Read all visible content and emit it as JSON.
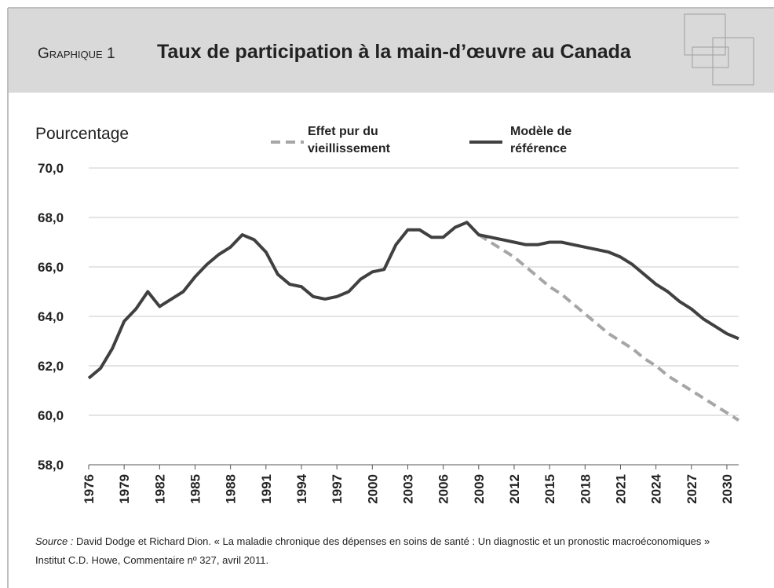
{
  "header": {
    "label": "Graphique 1",
    "title": "Taux de participation à la main-d’œuvre au Canada"
  },
  "chart_data": {
    "type": "line",
    "ylabel": "Pourcentage",
    "x": [
      1976,
      1977,
      1978,
      1979,
      1980,
      1981,
      1982,
      1983,
      1984,
      1985,
      1986,
      1987,
      1988,
      1989,
      1990,
      1991,
      1992,
      1993,
      1994,
      1995,
      1996,
      1997,
      1998,
      1999,
      2000,
      2001,
      2002,
      2003,
      2004,
      2005,
      2006,
      2007,
      2008,
      2009,
      2010,
      2011,
      2012,
      2013,
      2014,
      2015,
      2016,
      2017,
      2018,
      2019,
      2020,
      2021,
      2022,
      2023,
      2024,
      2025,
      2026,
      2027,
      2028,
      2029,
      2030,
      2031
    ],
    "series": [
      {
        "name": "Effet pur du vieillissement",
        "color": "#a6a6a6",
        "dashed": true,
        "values": [
          null,
          null,
          null,
          null,
          null,
          null,
          null,
          null,
          null,
          null,
          null,
          null,
          null,
          null,
          null,
          null,
          null,
          null,
          null,
          null,
          null,
          null,
          null,
          null,
          null,
          null,
          null,
          null,
          null,
          null,
          null,
          null,
          null,
          67.3,
          67.0,
          66.7,
          66.4,
          66.0,
          65.6,
          65.2,
          64.9,
          64.5,
          64.1,
          63.7,
          63.3,
          63.0,
          62.7,
          62.3,
          62.0,
          61.6,
          61.3,
          61.0,
          60.7,
          60.4,
          60.1,
          59.8
        ]
      },
      {
        "name": "Modèle de référence",
        "color": "#404040",
        "dashed": false,
        "values": [
          61.5,
          61.9,
          62.7,
          63.8,
          64.3,
          65.0,
          64.4,
          64.7,
          65.0,
          65.6,
          66.1,
          66.5,
          66.8,
          67.3,
          67.1,
          66.6,
          65.7,
          65.3,
          65.2,
          64.8,
          64.7,
          64.8,
          65.0,
          65.5,
          65.8,
          65.9,
          66.9,
          67.5,
          67.5,
          67.2,
          67.2,
          67.6,
          67.8,
          67.3,
          67.2,
          67.1,
          67.0,
          66.9,
          66.9,
          67.0,
          67.0,
          66.9,
          66.8,
          66.7,
          66.6,
          66.4,
          66.1,
          65.7,
          65.3,
          65.0,
          64.6,
          64.3,
          63.9,
          63.6,
          63.3,
          63.1
        ]
      }
    ],
    "xlim": [
      1976,
      2031
    ],
    "xticks": [
      1976,
      1979,
      1982,
      1985,
      1988,
      1991,
      1994,
      1997,
      2000,
      2003,
      2006,
      2009,
      2012,
      2015,
      2018,
      2021,
      2024,
      2027,
      2030
    ],
    "ylim": [
      58,
      70
    ],
    "yticks": [
      {
        "value": 58,
        "label": "58,0"
      },
      {
        "value": 60,
        "label": "60,0"
      },
      {
        "value": 62,
        "label": "62,0"
      },
      {
        "value": 64,
        "label": "64,0"
      },
      {
        "value": 66,
        "label": "66,0"
      },
      {
        "value": 68,
        "label": "68,0"
      },
      {
        "value": 70,
        "label": "70,0"
      }
    ],
    "grid": true
  },
  "source": {
    "label": "Source :",
    "text": "David Dodge et Richard Dion. « La maladie chronique des dépenses en soins de santé : Un diagnostic et un pronostic macroéconomiques » Institut C.D. Howe, Commentaire nº 327, avril 2011."
  }
}
